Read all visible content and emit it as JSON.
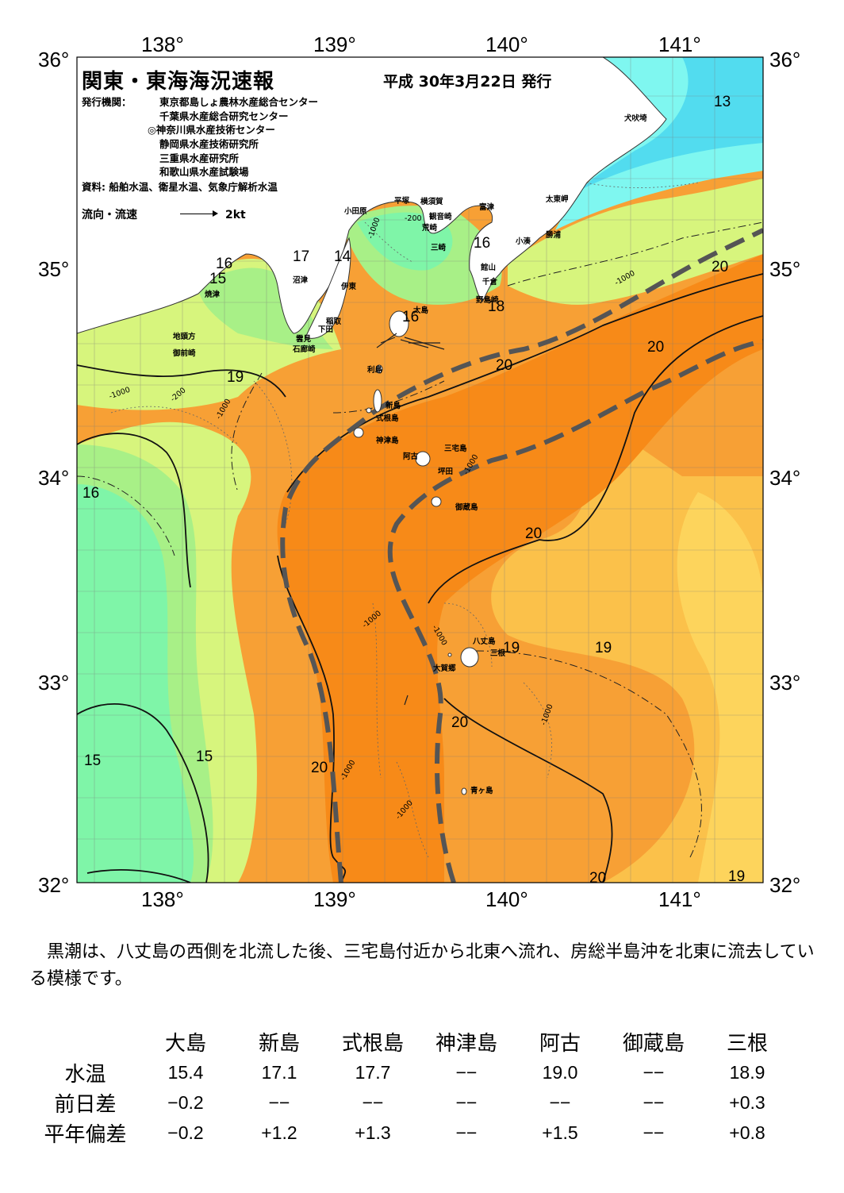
{
  "header": {
    "title": "関東・東海海況速報",
    "issue_date": "平成 30年3月22日 発行",
    "agency_label": "発行機関：",
    "agencies": [
      "東京都島しょ農林水産総合センター",
      "千葉県水産総合研究センター",
      "◎神奈川県水産技術センター",
      "静岡県水産技術研究所",
      "三重県水産研究所",
      "和歌山県水産試験場"
    ],
    "source": "資料: 船舶水温、衛星水温、気象庁解析水温",
    "legend_label": "流向・流速",
    "legend_scale": "2kt"
  },
  "axes": {
    "lon_labels": [
      "138°",
      "139°",
      "140°",
      "141°"
    ],
    "lat_labels": [
      "36°",
      "35°",
      "34°",
      "33°",
      "32°"
    ]
  },
  "colors": {
    "t13": "#7ff7f0",
    "t14": "#52dcef",
    "t15": "#7ff5a8",
    "t16": "#a8f087",
    "t17": "#d7f57d",
    "t18": "#f8dc60",
    "t19": "#fbc84c",
    "t20": "#f79a2c",
    "t21": "#f78a18",
    "land": "#ffffff",
    "kuroshio_axis": "#555555"
  },
  "place_names": {
    "inubozaki": "犬吠埼",
    "taitomisaki": "太東岬",
    "katsuura": "勝浦",
    "kominato": "小湊",
    "futtsu": "富津",
    "tateyama": "館山",
    "chikura": "千倉",
    "nojimazaki": "野島崎",
    "kannonzaki": "観音崎",
    "yokosuka": "横須賀",
    "hiratsuka": "平塚",
    "odawara": "小田原",
    "arasaki": "荒崎",
    "misaki": "三崎",
    "numazu": "沼津",
    "ito": "伊東",
    "inatori": "稲取",
    "shimoda": "下田",
    "kumomi": "雲見",
    "irozaki": "石廊崎",
    "yaizu": "焼津",
    "jitokata": "地頭方",
    "omaezaki": "御前崎",
    "oshima": "大島",
    "toshima": "利島",
    "niijima": "新島",
    "shikinejima": "式根島",
    "kozushima": "神津島",
    "miyakejima": "三宅島",
    "ako": "阿古",
    "tsubota": "坪田",
    "mikurajima": "御蔵島",
    "hachijojima": "八丈島",
    "mitsune": "三根",
    "okago": "大賀郷",
    "aogashima": "青ヶ島"
  },
  "isotherm_labels": [
    "13",
    "14",
    "15",
    "16",
    "17",
    "18",
    "19",
    "20"
  ],
  "depth_labels": [
    "-200",
    "-1000"
  ],
  "summary": "黒潮は、八丈島の西側を北流した後、三宅島付近から北東へ流れ、房総半島沖を北東に流去している模様です。",
  "table": {
    "columns": [
      "大島",
      "新島",
      "式根島",
      "神津島",
      "阿古",
      "御蔵島",
      "三根"
    ],
    "rows": [
      {
        "label": "水温",
        "values": [
          "15.4",
          "17.1",
          "17.7",
          "−−",
          "19.0",
          "−−",
          "18.9"
        ]
      },
      {
        "label": "前日差",
        "values": [
          "−0.2",
          "−−",
          "−−",
          "−−",
          "−−",
          "−−",
          "+0.3"
        ]
      },
      {
        "label": "平年偏差",
        "values": [
          "−0.2",
          "+1.2",
          "+1.3",
          "−−",
          "+1.5",
          "−−",
          "+0.8"
        ]
      }
    ]
  }
}
